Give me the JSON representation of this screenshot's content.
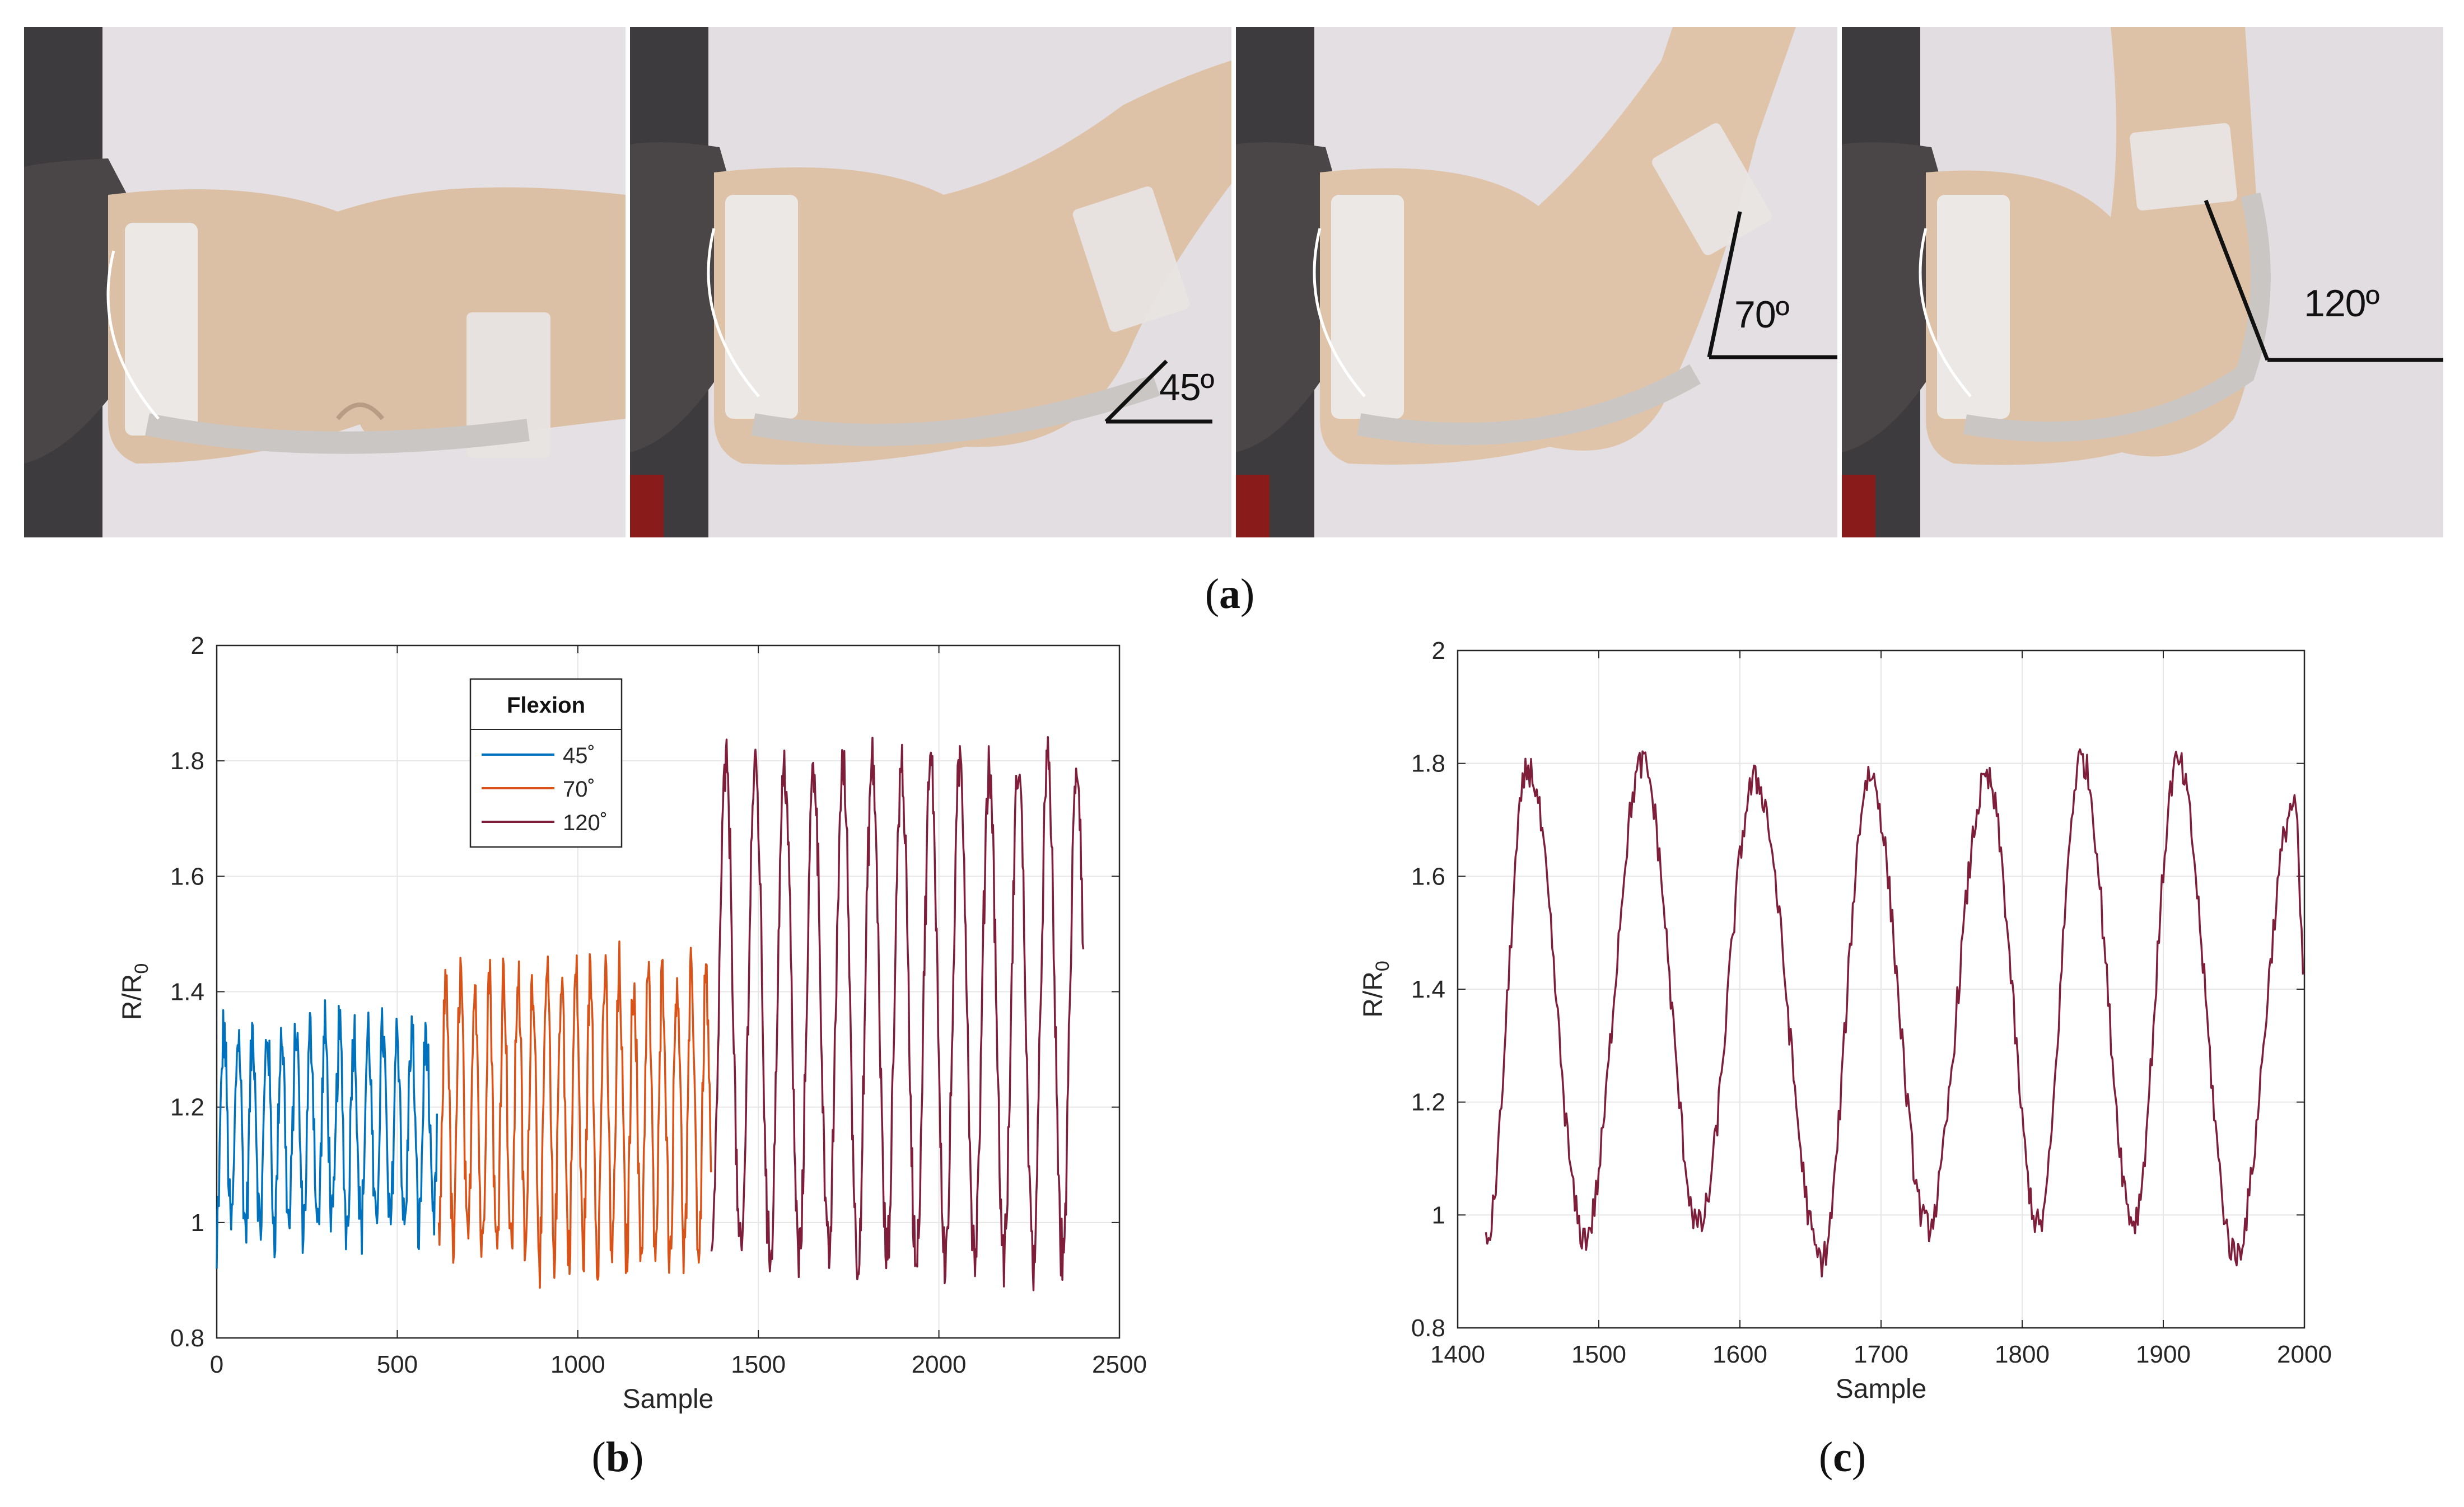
{
  "panels": [
    {
      "angle_label": ""
    },
    {
      "angle_label": "45º"
    },
    {
      "angle_label": "70º"
    },
    {
      "angle_label": "120º"
    }
  ],
  "captions": {
    "a": "a",
    "b": "b",
    "c": "c"
  },
  "colors": {
    "blue": "#0072BD",
    "orange": "#D95319",
    "maroon": "#7E1E3A",
    "grid": "#e6e6e6",
    "axis": "#262626"
  },
  "chart_data": [
    {
      "type": "line",
      "xlabel": "Sample",
      "ylabel": "R/R",
      "ylabel_sub": "0",
      "xlim": [
        0,
        2500
      ],
      "ylim": [
        0.8,
        2
      ],
      "xticks": [
        0,
        500,
        1000,
        1500,
        2000,
        2500
      ],
      "yticks": [
        0.8,
        1,
        1.2,
        1.4,
        1.6,
        1.8,
        2
      ],
      "yticklabels": [
        "0.8",
        "1",
        "1.2",
        "1.4",
        "1.6",
        "1.8",
        "2"
      ],
      "grid": true,
      "legend": {
        "title": "Flexion",
        "position": "top-center"
      },
      "series": [
        {
          "name": "45˚",
          "color": "#0072BD",
          "x_range": [
            0,
            610
          ],
          "period": 40,
          "min": 0.99,
          "max": 1.33,
          "noise": 0.035,
          "start": 0.92
        },
        {
          "name": "70˚",
          "color": "#D95319",
          "x_range": [
            615,
            1370
          ],
          "period": 40,
          "min": 0.95,
          "max": 1.43,
          "noise": 0.035,
          "start": 1.0
        },
        {
          "name": "120˚",
          "color": "#7E1E3A",
          "x_range": [
            1370,
            2400
          ],
          "period": 81,
          "min": 0.94,
          "max": 1.79,
          "noise": 0.03,
          "start": 0.95
        }
      ]
    },
    {
      "type": "line",
      "xlabel": "Sample",
      "ylabel": "R/R",
      "ylabel_sub": "0",
      "xlim": [
        1400,
        2000
      ],
      "ylim": [
        0.8,
        2
      ],
      "xticks": [
        1400,
        1500,
        1600,
        1700,
        1800,
        1900,
        2000
      ],
      "yticks": [
        0.8,
        1,
        1.2,
        1.4,
        1.6,
        1.8,
        2
      ],
      "yticklabels": [
        "0.8",
        "1",
        "1.2",
        "1.4",
        "1.6",
        "1.8",
        "2"
      ],
      "grid": true,
      "series": [
        {
          "name": "",
          "color": "#7E1E3A",
          "x_range": [
            1420,
            2000
          ],
          "peaks": [
            1450,
            1531,
            1611,
            1692,
            1775,
            1842,
            1910,
            1993
          ],
          "troughs": [
            1420,
            1490,
            1571,
            1658,
            1733,
            1812,
            1879,
            1951
          ],
          "peak_values": [
            1.79,
            1.8,
            1.77,
            1.78,
            1.77,
            1.81,
            1.8,
            1.73
          ],
          "trough_values": [
            0.95,
            0.96,
            0.98,
            0.92,
            0.98,
            0.98,
            0.99,
            0.93
          ],
          "noise": 0.03
        }
      ]
    }
  ]
}
